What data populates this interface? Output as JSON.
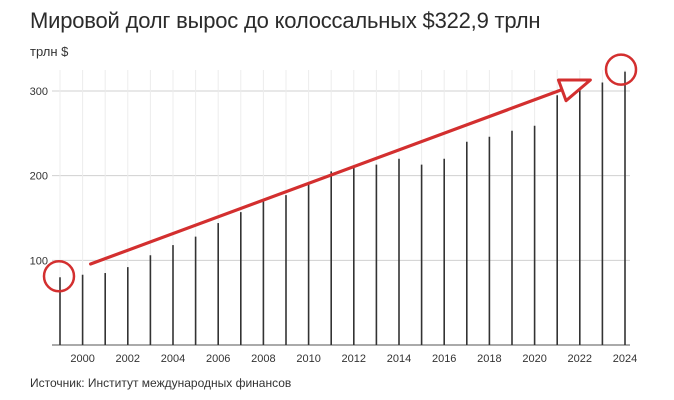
{
  "chart_data": {
    "type": "bar",
    "title": "Мировой долг вырос до колоссальных $322,9 трлн",
    "ylabel": "трлн $",
    "source": "Источник: Институт международных финансов",
    "ylim": [
      0,
      330
    ],
    "yticks": [
      100,
      200,
      300
    ],
    "grid": true,
    "x": [
      1999,
      2000,
      2001,
      2002,
      2003,
      2004,
      2005,
      2006,
      2007,
      2008,
      2009,
      2010,
      2011,
      2012,
      2013,
      2014,
      2015,
      2016,
      2017,
      2018,
      2019,
      2020,
      2021,
      2022,
      2023,
      2024
    ],
    "x_tick_labels": [
      "2000",
      "2002",
      "2004",
      "2006",
      "2008",
      "2010",
      "2012",
      "2014",
      "2016",
      "2018",
      "2020",
      "2022",
      "2024"
    ],
    "values": [
      80,
      83,
      85,
      92,
      106,
      118,
      128,
      144,
      157,
      170,
      177,
      190,
      205,
      210,
      213,
      220,
      213,
      220,
      240,
      246,
      253,
      259,
      295,
      305,
      310,
      322.9
    ],
    "annotation": {
      "trend_arrow": {
        "from_year": 2000,
        "to_year": 2023,
        "color": "#d32f2f"
      },
      "circled_years": [
        1999,
        2024
      ],
      "circle_color": "#d32f2f"
    },
    "colors": {
      "bars": "#333333",
      "grid": "#d0d0d0",
      "accent": "#d32f2f"
    }
  }
}
